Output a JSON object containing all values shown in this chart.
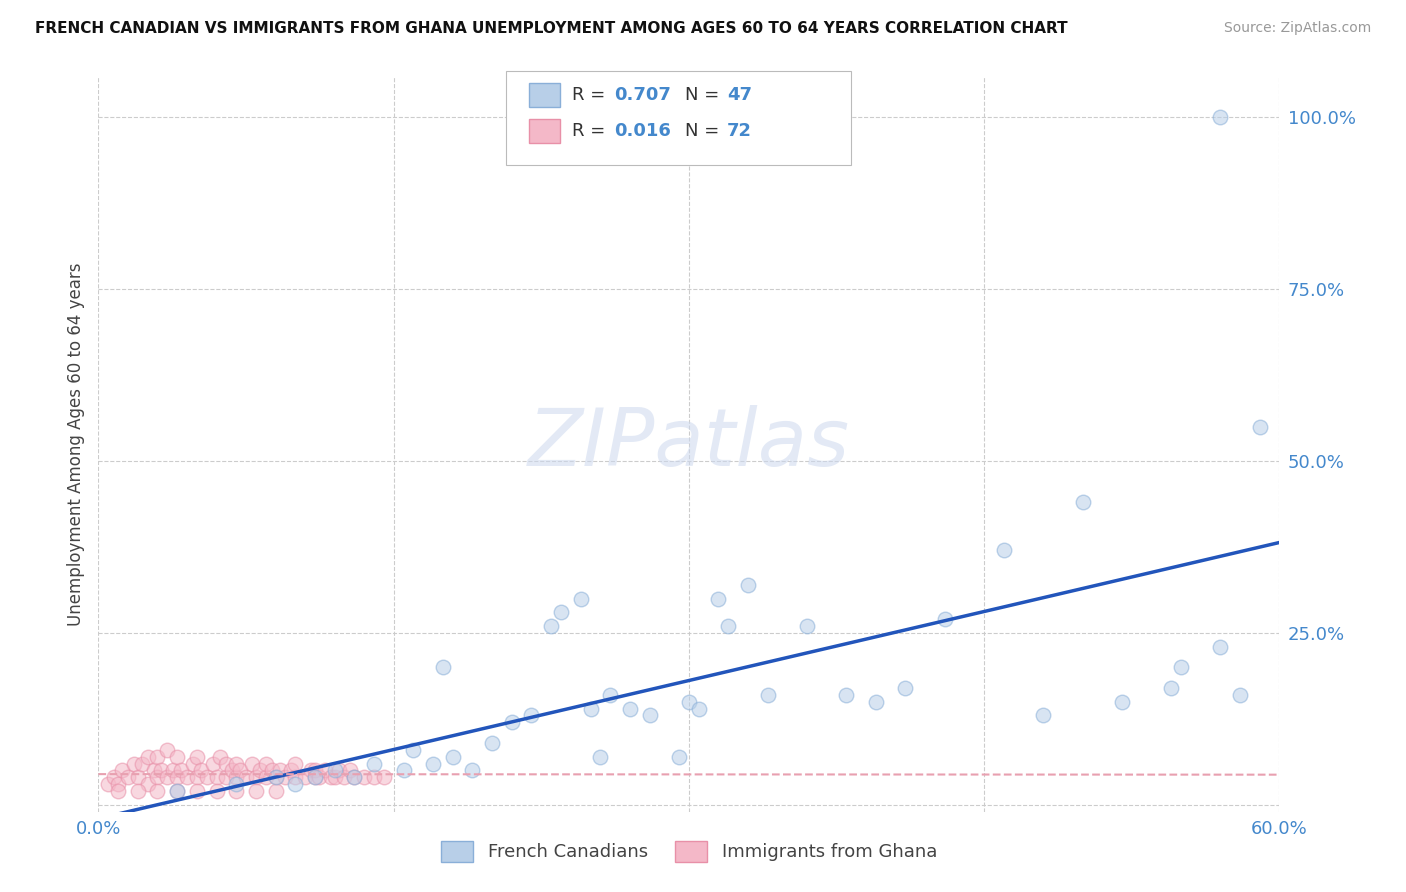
{
  "title": "FRENCH CANADIAN VS IMMIGRANTS FROM GHANA UNEMPLOYMENT AMONG AGES 60 TO 64 YEARS CORRELATION CHART",
  "source": "Source: ZipAtlas.com",
  "ylabel": "Unemployment Among Ages 60 to 64 years",
  "xlim": [
    0.0,
    0.6
  ],
  "ylim": [
    -0.01,
    1.06
  ],
  "xtick_vals": [
    0.0,
    0.15,
    0.3,
    0.45,
    0.6
  ],
  "xtick_labels": [
    "0.0%",
    "",
    "",
    "",
    "60.0%"
  ],
  "ytick_vals": [
    0.0,
    0.25,
    0.5,
    0.75,
    1.0
  ],
  "ytick_labels_right": [
    "",
    "25.0%",
    "50.0%",
    "75.0%",
    "100.0%"
  ],
  "grid_color": "#cccccc",
  "bg_color": "#ffffff",
  "blue_fill": "#b8cfe8",
  "blue_edge": "#8aafd8",
  "pink_fill": "#f4b8c8",
  "pink_edge": "#e890a8",
  "blue_line_color": "#2255bb",
  "pink_line_color": "#e8a0b0",
  "legend_label_blue": "French Canadians",
  "legend_label_pink": "Immigrants from Ghana",
  "blue_x": [
    0.04,
    0.07,
    0.09,
    0.1,
    0.11,
    0.12,
    0.13,
    0.14,
    0.155,
    0.16,
    0.17,
    0.175,
    0.18,
    0.19,
    0.2,
    0.21,
    0.22,
    0.23,
    0.235,
    0.245,
    0.25,
    0.255,
    0.26,
    0.27,
    0.28,
    0.295,
    0.3,
    0.305,
    0.315,
    0.32,
    0.33,
    0.34,
    0.36,
    0.38,
    0.395,
    0.41,
    0.43,
    0.46,
    0.48,
    0.5,
    0.52,
    0.545,
    0.55,
    0.57,
    0.58,
    0.59,
    0.57
  ],
  "blue_y": [
    0.02,
    0.03,
    0.04,
    0.03,
    0.04,
    0.05,
    0.04,
    0.06,
    0.05,
    0.08,
    0.06,
    0.2,
    0.07,
    0.05,
    0.09,
    0.12,
    0.13,
    0.26,
    0.28,
    0.3,
    0.14,
    0.07,
    0.16,
    0.14,
    0.13,
    0.07,
    0.15,
    0.14,
    0.3,
    0.26,
    0.32,
    0.16,
    0.26,
    0.16,
    0.15,
    0.17,
    0.27,
    0.37,
    0.13,
    0.44,
    0.15,
    0.17,
    0.2,
    0.23,
    0.16,
    0.55,
    1.0
  ],
  "pink_x": [
    0.005,
    0.008,
    0.01,
    0.012,
    0.015,
    0.018,
    0.02,
    0.022,
    0.025,
    0.025,
    0.028,
    0.03,
    0.03,
    0.032,
    0.035,
    0.035,
    0.038,
    0.04,
    0.04,
    0.042,
    0.045,
    0.048,
    0.05,
    0.05,
    0.052,
    0.055,
    0.058,
    0.06,
    0.062,
    0.065,
    0.065,
    0.068,
    0.07,
    0.07,
    0.072,
    0.075,
    0.078,
    0.08,
    0.082,
    0.085,
    0.085,
    0.088,
    0.09,
    0.092,
    0.095,
    0.098,
    0.1,
    0.1,
    0.105,
    0.108,
    0.11,
    0.11,
    0.112,
    0.115,
    0.118,
    0.12,
    0.122,
    0.125,
    0.128,
    0.13,
    0.135,
    0.14,
    0.145,
    0.01,
    0.02,
    0.03,
    0.04,
    0.05,
    0.06,
    0.07,
    0.08,
    0.09
  ],
  "pink_y": [
    0.03,
    0.04,
    0.03,
    0.05,
    0.04,
    0.06,
    0.04,
    0.06,
    0.03,
    0.07,
    0.05,
    0.04,
    0.07,
    0.05,
    0.04,
    0.08,
    0.05,
    0.04,
    0.07,
    0.05,
    0.04,
    0.06,
    0.04,
    0.07,
    0.05,
    0.04,
    0.06,
    0.04,
    0.07,
    0.04,
    0.06,
    0.05,
    0.04,
    0.06,
    0.05,
    0.04,
    0.06,
    0.04,
    0.05,
    0.04,
    0.06,
    0.05,
    0.04,
    0.05,
    0.04,
    0.05,
    0.04,
    0.06,
    0.04,
    0.05,
    0.04,
    0.05,
    0.04,
    0.05,
    0.04,
    0.04,
    0.05,
    0.04,
    0.05,
    0.04,
    0.04,
    0.04,
    0.04,
    0.02,
    0.02,
    0.02,
    0.02,
    0.02,
    0.02,
    0.02,
    0.02,
    0.02
  ],
  "scatter_size": 110,
  "scatter_alpha": 0.55,
  "watermark_text": "ZIPatlas",
  "watermark_color": "#ccd8ee",
  "title_fontsize": 11,
  "tick_label_fontsize": 13,
  "ylabel_fontsize": 12,
  "legend_fontsize": 13
}
